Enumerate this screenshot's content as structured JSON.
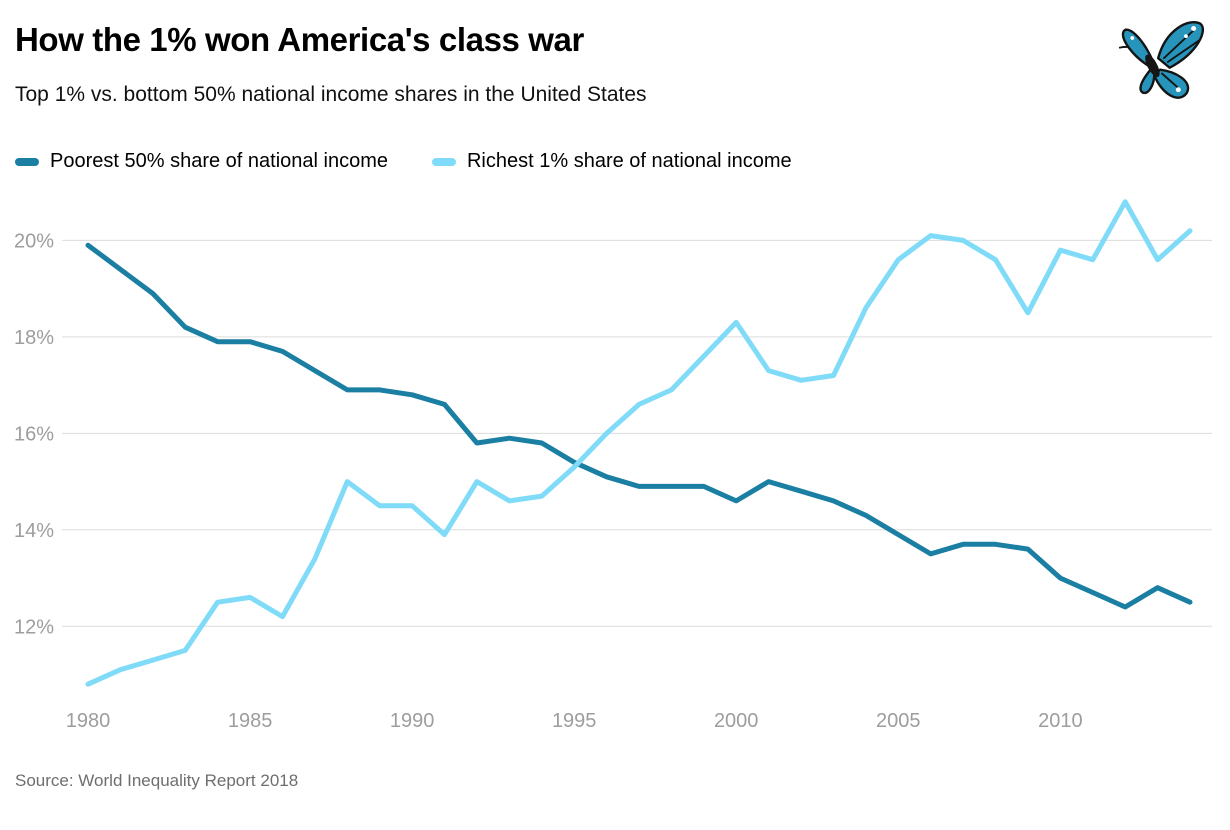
{
  "header": {
    "title": "How the 1% won America's class war",
    "subtitle": "Top 1% vs. bottom 50% national income shares in the United States",
    "logo_icon": "butterfly-icon",
    "logo_color": "#2795bb"
  },
  "footer": {
    "source": "Source: World Inequality Report 2018"
  },
  "chart_data": {
    "type": "line",
    "title": "How the 1% won America's class war",
    "subtitle": "Top 1% vs. bottom 50% national income shares in the United States",
    "x": [
      1980,
      1981,
      1982,
      1983,
      1984,
      1985,
      1986,
      1987,
      1988,
      1989,
      1990,
      1991,
      1992,
      1993,
      1994,
      1995,
      1996,
      1997,
      1998,
      1999,
      2000,
      2001,
      2002,
      2003,
      2004,
      2005,
      2006,
      2007,
      2008,
      2009,
      2010,
      2011,
      2012,
      2013,
      2014
    ],
    "series": [
      {
        "name": "Poorest 50% share of national income",
        "color": "#1a7fa3",
        "values": [
          19.9,
          19.4,
          18.9,
          18.2,
          17.9,
          17.9,
          17.7,
          17.3,
          16.9,
          16.9,
          16.8,
          16.6,
          15.8,
          15.9,
          15.8,
          15.4,
          15.1,
          14.9,
          14.9,
          14.9,
          14.6,
          15.0,
          14.8,
          14.6,
          14.3,
          13.9,
          13.5,
          13.7,
          13.7,
          13.6,
          13.0,
          12.7,
          12.4,
          12.8,
          12.5
        ]
      },
      {
        "name": "Richest 1% share of national income",
        "color": "#7fdbf7",
        "values": [
          10.8,
          11.1,
          11.3,
          11.5,
          12.5,
          12.6,
          12.2,
          13.4,
          15.0,
          14.5,
          14.5,
          13.9,
          15.0,
          14.6,
          14.7,
          15.3,
          16.0,
          16.6,
          16.9,
          17.6,
          18.3,
          17.3,
          17.1,
          17.2,
          18.6,
          19.6,
          20.1,
          20.0,
          19.6,
          18.5,
          19.8,
          19.6,
          20.8,
          19.6,
          20.2
        ]
      }
    ],
    "y_ticks": [
      12,
      14,
      16,
      18,
      20
    ],
    "y_tick_labels": [
      "12%",
      "14%",
      "16%",
      "18%",
      "20%"
    ],
    "x_ticks": [
      1980,
      1985,
      1990,
      1995,
      2000,
      2005,
      2010
    ],
    "ylim": [
      10.7,
      20.9
    ],
    "grid": "horizontal",
    "grid_color": "#dcdcdc",
    "tick_color": "#9d9d9d",
    "legend_position": "top",
    "line_width": 5
  }
}
